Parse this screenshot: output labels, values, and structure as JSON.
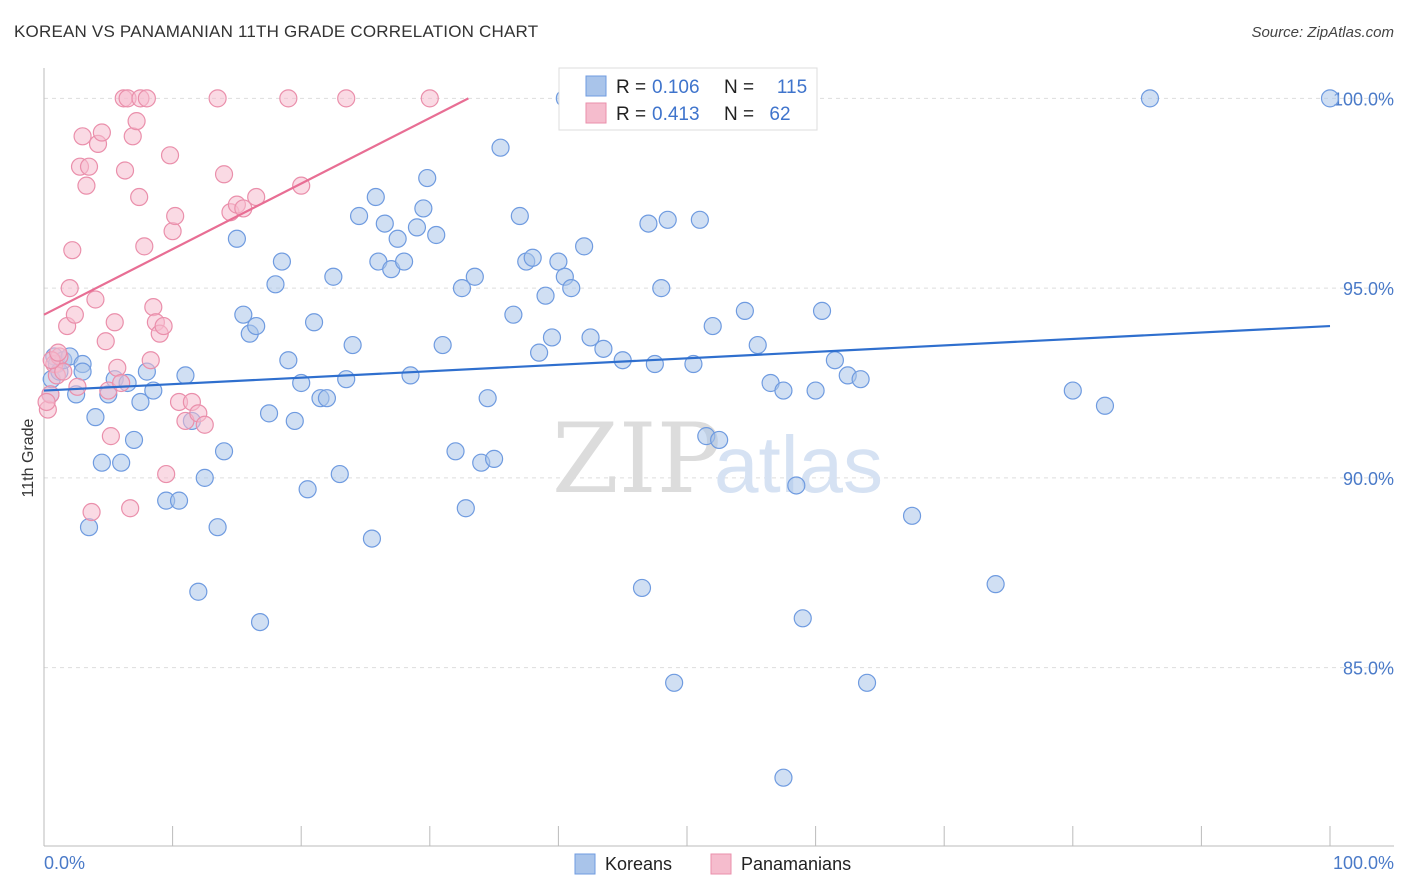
{
  "title": "KOREAN VS PANAMANIAN 11TH GRADE CORRELATION CHART",
  "source": "Source: ZipAtlas.com",
  "watermark": {
    "zip": "ZIP",
    "atlas": "atlas"
  },
  "legend": {
    "r_label": "R =",
    "n_label": "N =",
    "koreans": {
      "r": "0.106",
      "n": "115"
    },
    "panamanians": {
      "r": "0.413",
      "n": "62"
    }
  },
  "bottom_legend": [
    "Koreans",
    "Panamanians"
  ],
  "colors": {
    "koreans_fill": "#a9c4ea",
    "koreans_stroke": "#6f9be0",
    "koreans_line": "#2f6fce",
    "panamanians_fill": "#f5bccd",
    "panamanians_stroke": "#ea8fab",
    "panamanians_line": "#e86e94",
    "grid": "#dddddd",
    "tick_text": "#4a7ac8"
  },
  "chart_data": {
    "type": "scatter",
    "title": "KOREAN VS PANAMANIAN 11TH GRADE CORRELATION CHART",
    "xlabel": "",
    "ylabel": "11th Grade",
    "xlim": [
      0,
      100
    ],
    "ylim": [
      80.3,
      100.8
    ],
    "x_tick_labels": [
      "0.0%",
      "100.0%"
    ],
    "y_ticks": [
      85,
      90,
      95,
      100
    ],
    "y_tick_labels": [
      "85.0%",
      "90.0%",
      "95.0%",
      "100.0%"
    ],
    "grid": true,
    "series": [
      {
        "name": "Koreans",
        "trend": {
          "x": [
            0,
            100
          ],
          "y": [
            92.3,
            94.0
          ]
        },
        "points": [
          [
            0.5,
            92.2
          ],
          [
            0.6,
            92.6
          ],
          [
            0.8,
            93.2
          ],
          [
            1.0,
            93.0
          ],
          [
            1.2,
            92.8
          ],
          [
            1.5,
            93.1
          ],
          [
            2.0,
            93.2
          ],
          [
            2.5,
            92.2
          ],
          [
            3.0,
            93.0
          ],
          [
            3.5,
            88.7
          ],
          [
            4.0,
            91.6
          ],
          [
            4.5,
            90.4
          ],
          [
            5.0,
            92.2
          ],
          [
            5.5,
            92.6
          ],
          [
            6.0,
            90.4
          ],
          [
            6.5,
            92.5
          ],
          [
            7.0,
            91.0
          ],
          [
            7.5,
            92.0
          ],
          [
            8.0,
            92.8
          ],
          [
            8.5,
            92.3
          ],
          [
            9.5,
            89.4
          ],
          [
            10.5,
            89.4
          ],
          [
            11.0,
            92.7
          ],
          [
            11.5,
            91.5
          ],
          [
            12.0,
            87.0
          ],
          [
            12.5,
            90.0
          ],
          [
            13.5,
            88.7
          ],
          [
            14.0,
            90.7
          ],
          [
            15.0,
            96.3
          ],
          [
            15.5,
            94.3
          ],
          [
            16.0,
            93.8
          ],
          [
            16.5,
            94.0
          ],
          [
            16.8,
            86.2
          ],
          [
            17.5,
            91.7
          ],
          [
            18.0,
            95.1
          ],
          [
            18.5,
            95.7
          ],
          [
            19.0,
            93.1
          ],
          [
            19.5,
            91.5
          ],
          [
            20.0,
            92.5
          ],
          [
            20.5,
            89.7
          ],
          [
            21.0,
            94.1
          ],
          [
            21.5,
            92.1
          ],
          [
            22.0,
            92.1
          ],
          [
            22.5,
            95.3
          ],
          [
            23.0,
            90.1
          ],
          [
            23.5,
            92.6
          ],
          [
            24.0,
            93.5
          ],
          [
            24.5,
            96.9
          ],
          [
            25.5,
            88.4
          ],
          [
            25.8,
            97.4
          ],
          [
            26.0,
            95.7
          ],
          [
            26.5,
            96.7
          ],
          [
            27.0,
            95.5
          ],
          [
            27.5,
            96.3
          ],
          [
            28.0,
            95.7
          ],
          [
            28.5,
            92.7
          ],
          [
            29.0,
            96.6
          ],
          [
            29.5,
            97.1
          ],
          [
            29.8,
            97.9
          ],
          [
            30.5,
            96.4
          ],
          [
            31.0,
            93.5
          ],
          [
            32.0,
            90.7
          ],
          [
            32.5,
            95.0
          ],
          [
            32.8,
            89.2
          ],
          [
            33.5,
            95.3
          ],
          [
            34.0,
            90.4
          ],
          [
            34.5,
            92.1
          ],
          [
            35.0,
            90.5
          ],
          [
            35.5,
            98.7
          ],
          [
            36.5,
            94.3
          ],
          [
            37.0,
            96.9
          ],
          [
            37.5,
            95.7
          ],
          [
            38.0,
            95.8
          ],
          [
            38.5,
            93.3
          ],
          [
            39.0,
            94.8
          ],
          [
            39.5,
            93.7
          ],
          [
            40.0,
            95.7
          ],
          [
            40.5,
            95.3
          ],
          [
            41.0,
            95.0
          ],
          [
            42.0,
            96.1
          ],
          [
            42.5,
            93.7
          ],
          [
            43.5,
            93.4
          ],
          [
            45.0,
            93.1
          ],
          [
            46.5,
            87.1
          ],
          [
            47.0,
            96.7
          ],
          [
            47.5,
            93.0
          ],
          [
            48.0,
            95.0
          ],
          [
            48.5,
            96.8
          ],
          [
            49.0,
            84.6
          ],
          [
            50.5,
            93.0
          ],
          [
            51.0,
            96.8
          ],
          [
            51.5,
            91.1
          ],
          [
            52.0,
            94.0
          ],
          [
            52.5,
            91.0
          ],
          [
            54.5,
            94.4
          ],
          [
            55.5,
            93.5
          ],
          [
            56.5,
            92.5
          ],
          [
            57.5,
            92.3
          ],
          [
            58.5,
            89.8
          ],
          [
            59.0,
            86.3
          ],
          [
            60.0,
            92.3
          ],
          [
            60.5,
            94.4
          ],
          [
            61.5,
            93.1
          ],
          [
            62.5,
            92.7
          ],
          [
            63.5,
            92.6
          ],
          [
            64.0,
            84.6
          ],
          [
            67.5,
            89.0
          ],
          [
            74.0,
            87.2
          ],
          [
            80.0,
            92.3
          ],
          [
            82.5,
            91.9
          ],
          [
            86.0,
            100.0
          ],
          [
            100.0,
            100.0
          ],
          [
            40.5,
            100.0
          ],
          [
            57.5,
            82.1
          ],
          [
            3.0,
            92.8
          ]
        ]
      },
      {
        "name": "Panamanians",
        "trend": {
          "x": [
            0,
            33
          ],
          "y": [
            94.3,
            100.0
          ]
        },
        "points": [
          [
            0.3,
            91.8
          ],
          [
            0.5,
            92.2
          ],
          [
            0.8,
            93.0
          ],
          [
            1.0,
            92.7
          ],
          [
            1.2,
            93.2
          ],
          [
            1.5,
            92.8
          ],
          [
            1.8,
            94.0
          ],
          [
            2.0,
            95.0
          ],
          [
            2.2,
            96.0
          ],
          [
            2.4,
            94.3
          ],
          [
            2.6,
            92.4
          ],
          [
            2.8,
            98.2
          ],
          [
            3.0,
            99.0
          ],
          [
            3.3,
            97.7
          ],
          [
            3.5,
            98.2
          ],
          [
            3.7,
            89.1
          ],
          [
            4.0,
            94.7
          ],
          [
            4.2,
            98.8
          ],
          [
            4.5,
            99.1
          ],
          [
            4.8,
            93.6
          ],
          [
            5.0,
            92.3
          ],
          [
            5.2,
            91.1
          ],
          [
            5.5,
            94.1
          ],
          [
            5.7,
            92.9
          ],
          [
            6.0,
            92.5
          ],
          [
            6.2,
            100.0
          ],
          [
            6.3,
            98.1
          ],
          [
            6.5,
            100.0
          ],
          [
            6.7,
            89.2
          ],
          [
            6.9,
            99.0
          ],
          [
            7.2,
            99.4
          ],
          [
            7.4,
            97.4
          ],
          [
            7.5,
            100.0
          ],
          [
            7.8,
            96.1
          ],
          [
            8.0,
            100.0
          ],
          [
            8.3,
            93.1
          ],
          [
            8.5,
            94.5
          ],
          [
            8.7,
            94.1
          ],
          [
            9.0,
            93.8
          ],
          [
            9.3,
            94.0
          ],
          [
            9.5,
            90.1
          ],
          [
            9.8,
            98.5
          ],
          [
            10.0,
            96.5
          ],
          [
            10.2,
            96.9
          ],
          [
            10.5,
            92.0
          ],
          [
            11.0,
            91.5
          ],
          [
            11.5,
            92.0
          ],
          [
            12.0,
            91.7
          ],
          [
            12.5,
            91.4
          ],
          [
            13.5,
            100.0
          ],
          [
            14.0,
            98.0
          ],
          [
            14.5,
            97.0
          ],
          [
            15.0,
            97.2
          ],
          [
            15.5,
            97.1
          ],
          [
            16.5,
            97.4
          ],
          [
            19.0,
            100.0
          ],
          [
            20.0,
            97.7
          ],
          [
            23.5,
            100.0
          ],
          [
            30.0,
            100.0
          ],
          [
            0.2,
            92.0
          ],
          [
            0.6,
            93.1
          ],
          [
            1.1,
            93.3
          ]
        ]
      }
    ]
  }
}
